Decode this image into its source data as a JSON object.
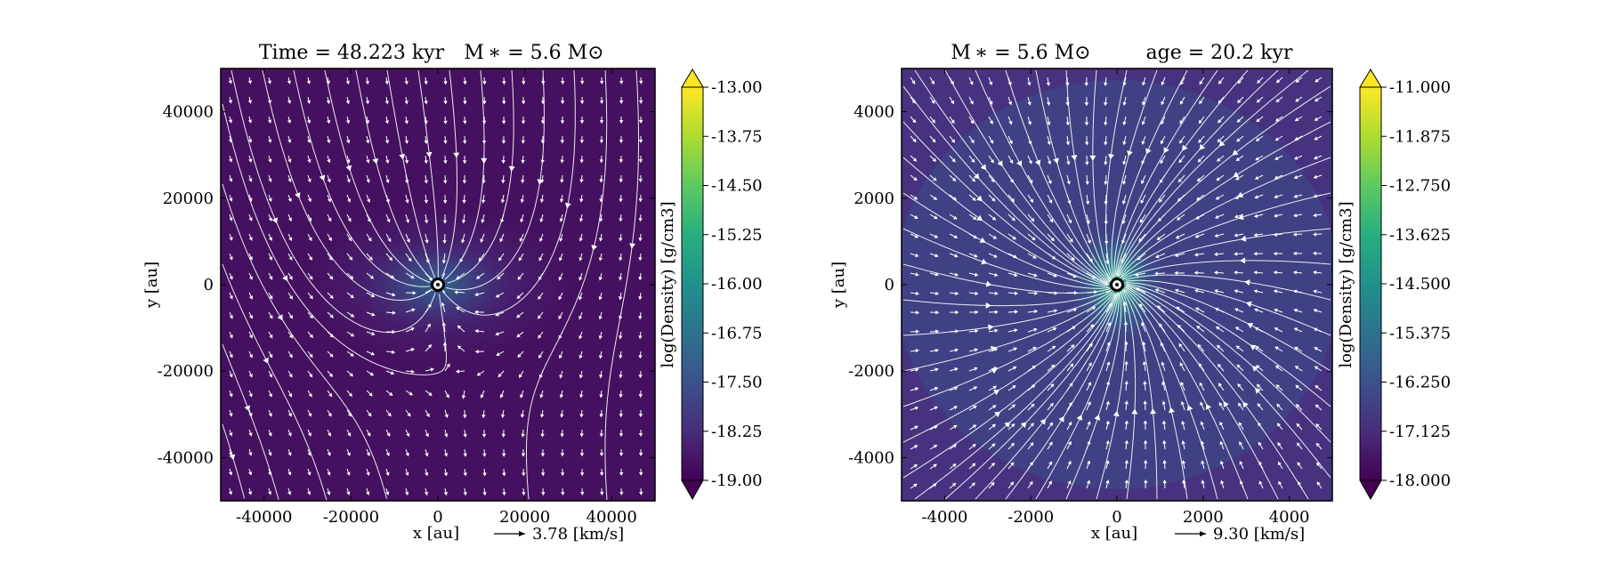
{
  "chart_data": [
    {
      "type": "heatmap",
      "title_left": "Time = 48.223 kyr",
      "title_right": "M ∗ = 5.6 M⊙",
      "xlabel": "x [au]",
      "ylabel": "y [au]",
      "xlim": [
        -50000,
        50000
      ],
      "ylim": [
        -50000,
        50000
      ],
      "xticks": [
        -40000,
        -20000,
        0,
        20000,
        40000
      ],
      "yticks": [
        -40000,
        -20000,
        0,
        20000,
        40000
      ],
      "xtick_labels": [
        "-40000",
        "-20000",
        "0",
        "20000",
        "40000"
      ],
      "ytick_labels": [
        "-40000",
        "-20000",
        "0",
        "20000",
        "40000"
      ],
      "velocity_scale_label": "3.78 [km/s]",
      "colorbar": {
        "label": "log(Density) [g/cm3]",
        "range": [
          -19.0,
          -13.0
        ],
        "ticks": [
          -13.0,
          -13.75,
          -14.5,
          -15.25,
          -16.0,
          -16.75,
          -17.5,
          -18.25,
          -19.0
        ],
        "tick_labels": [
          "-13.00",
          "-13.75",
          "-14.50",
          "-15.25",
          "-16.00",
          "-16.75",
          "-17.50",
          "-18.25",
          "-19.00"
        ],
        "extend": "both",
        "colormap": "viridis"
      },
      "density_field": {
        "background_log_density": -18.9,
        "peak_log_density": -16.1,
        "peak_position": [
          0,
          0
        ],
        "envelope_extent": [
          30000,
          18000
        ]
      },
      "flow": "streamlines trending downward with slight tilt, converging horizontally onto the central star",
      "star_position": [
        0,
        0
      ]
    },
    {
      "type": "heatmap",
      "title_left": "M ∗ = 5.6 M⊙",
      "title_right": "age = 20.2 kyr",
      "xlabel": "x [au]",
      "ylabel": "y [au]",
      "xlim": [
        -5000,
        5000
      ],
      "ylim": [
        -5000,
        5000
      ],
      "xticks": [
        -4000,
        -2000,
        0,
        2000,
        4000
      ],
      "yticks": [
        -4000,
        -2000,
        0,
        2000,
        4000
      ],
      "xtick_labels": [
        "-4000",
        "-2000",
        "0",
        "2000",
        "4000"
      ],
      "ytick_labels": [
        "-4000",
        "-2000",
        "0",
        "2000",
        "4000"
      ],
      "velocity_scale_label": "9.30 [km/s]",
      "colorbar": {
        "label": "log(Density) [g/cm3]",
        "range": [
          -18.0,
          -11.0
        ],
        "ticks": [
          -11.0,
          -11.875,
          -12.75,
          -13.625,
          -14.5,
          -15.375,
          -16.25,
          -17.125,
          -18.0
        ],
        "tick_labels": [
          "-11.000",
          "-11.875",
          "-12.750",
          "-13.625",
          "-14.500",
          "-15.375",
          "-16.250",
          "-17.125",
          "-18.000"
        ],
        "extend": "both",
        "colormap": "viridis"
      },
      "density_field": {
        "background_log_density": -17.4,
        "peak_log_density": -14.9,
        "peak_position": [
          0,
          0
        ],
        "envelope_extent": [
          1100,
          1400
        ]
      },
      "flow": "streamlines converging radially toward the central star",
      "star_position": [
        0,
        0
      ]
    }
  ]
}
